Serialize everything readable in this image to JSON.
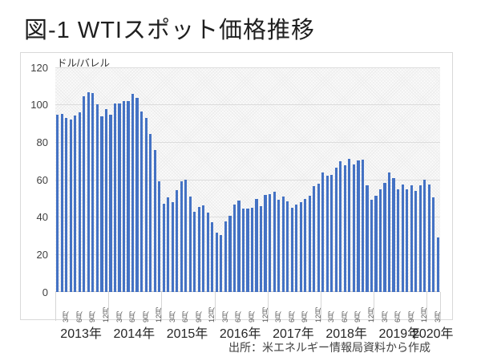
{
  "page": {
    "title": "図-1 WTIスポット価格推移",
    "source": "出所：米エネルギー情報局資料から作成"
  },
  "chart_data": {
    "type": "bar",
    "title": "図-1 WTIスポット価格推移",
    "unit_label": "ドル/バレル",
    "ylabel": "ドル/バレル",
    "ylim": [
      0,
      120
    ],
    "yticks": [
      0,
      20,
      40,
      60,
      80,
      100,
      120
    ],
    "bar_color": "#4472C4",
    "gridline_color": "#dcdcdc",
    "plot_background": "light-gray-crosshatch",
    "legend": "none",
    "month_tick_months": [
      3,
      6,
      9,
      12
    ],
    "month_suffix": "月",
    "groups": [
      {
        "year": "2013年",
        "values": [
          94.8,
          95.3,
          92.9,
          92.0,
          94.5,
          95.8,
          104.7,
          106.6,
          106.3,
          100.5,
          93.9,
          97.6
        ]
      },
      {
        "year": "2014年",
        "values": [
          94.6,
          100.8,
          100.8,
          102.1,
          102.2,
          105.8,
          103.6,
          96.5,
          93.2,
          84.4,
          75.8,
          59.3
        ]
      },
      {
        "year": "2015年",
        "values": [
          47.2,
          50.6,
          47.8,
          54.5,
          59.3,
          59.8,
          50.9,
          42.9,
          45.5,
          46.2,
          42.4,
          37.2
        ]
      },
      {
        "year": "2016年",
        "values": [
          31.7,
          30.3,
          37.6,
          40.8,
          46.7,
          48.8,
          44.7,
          44.7,
          45.2,
          49.8,
          45.7,
          52.0
        ]
      },
      {
        "year": "2017年",
        "values": [
          52.5,
          53.5,
          49.3,
          51.1,
          48.5,
          45.2,
          46.6,
          48.0,
          49.8,
          51.6,
          56.6,
          57.9
        ]
      },
      {
        "year": "2018年",
        "values": [
          63.7,
          62.2,
          62.7,
          66.3,
          70.0,
          67.9,
          71.0,
          68.1,
          70.2,
          70.8,
          57.0,
          49.5
        ]
      },
      {
        "year": "2019年",
        "values": [
          51.4,
          55.0,
          58.2,
          63.9,
          60.8,
          54.7,
          57.4,
          54.8,
          57.0,
          54.0,
          57.0,
          59.9
        ]
      },
      {
        "year": "2020年",
        "values": [
          57.5,
          50.5,
          29.2
        ]
      }
    ],
    "source": "出所：米エネルギー情報局資料から作成"
  }
}
